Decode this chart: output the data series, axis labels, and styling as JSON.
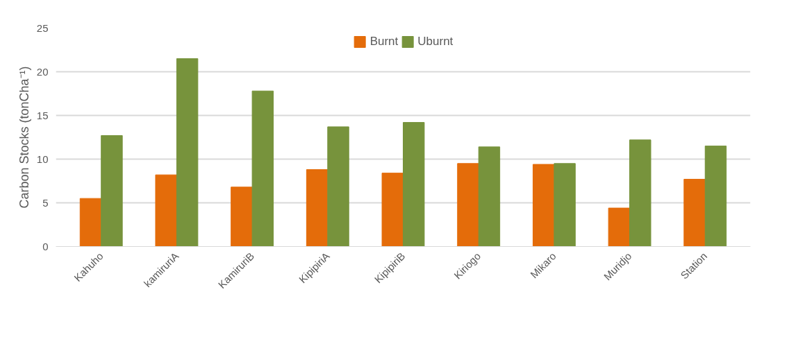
{
  "chart_data": {
    "type": "bar",
    "ylabel": "Carbon Stocks (tonCha⁻¹)",
    "categories": [
      "Kahuho",
      "kamiruriA",
      "KamiruriB",
      "KipipiriA",
      "KipipiriB",
      "Kiriogo",
      "Mikaro",
      "Muridjo",
      "Station"
    ],
    "series": [
      {
        "name": "Burnt",
        "color": "#e46c0a",
        "values": [
          5.5,
          8.2,
          6.8,
          8.8,
          8.4,
          9.5,
          9.4,
          4.4,
          7.7
        ]
      },
      {
        "name": "Uburnt",
        "color": "#77933c",
        "values": [
          12.7,
          21.5,
          17.8,
          13.7,
          14.2,
          11.4,
          9.5,
          12.2,
          11.5
        ]
      }
    ],
    "ylim": [
      0,
      25
    ],
    "yticks": [
      0,
      5,
      10,
      15,
      20,
      25
    ],
    "grid": "y",
    "legend": "top"
  }
}
